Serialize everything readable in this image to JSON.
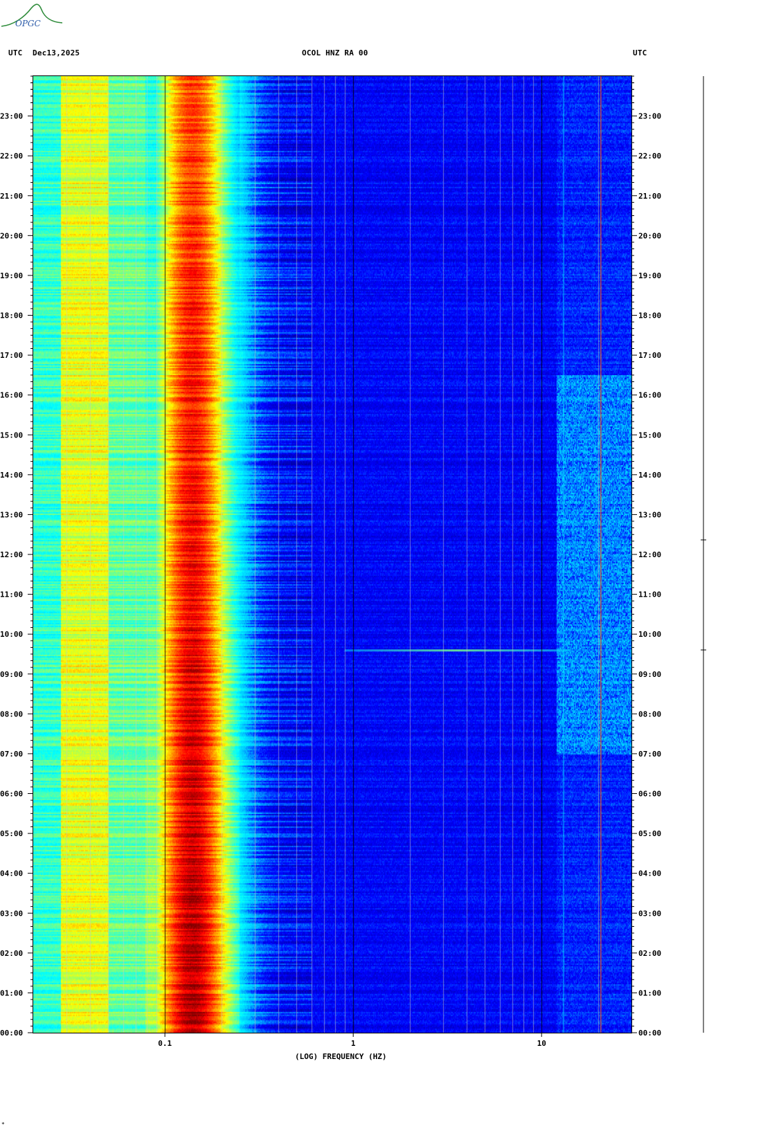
{
  "header": {
    "left_tz": "UTC",
    "date": "Dec13,2025",
    "station": "OCOL HNZ RA 00",
    "right_tz": "UTC"
  },
  "logo": {
    "text": "OPGC"
  },
  "chart_data": {
    "type": "heatmap",
    "title": "OCOL HNZ RA 00",
    "xlabel": "(LOG) FREQUENCY (HZ)",
    "x_scale": "log",
    "xlim": [
      0.02,
      30
    ],
    "x_tick_labels": [
      {
        "value": 0.1,
        "label": "0.1"
      },
      {
        "value": 1,
        "label": "1"
      },
      {
        "value": 10,
        "label": "10"
      }
    ],
    "y_tick_labels": [
      "00:00",
      "01:00",
      "02:00",
      "03:00",
      "04:00",
      "05:00",
      "06:00",
      "07:00",
      "08:00",
      "09:00",
      "10:00",
      "11:00",
      "12:00",
      "13:00",
      "14:00",
      "15:00",
      "16:00",
      "17:00",
      "18:00",
      "19:00",
      "20:00",
      "21:00",
      "22:00",
      "23:00"
    ],
    "ylim_hours": [
      0,
      24
    ],
    "colormap": [
      "#00007f",
      "#0000ff",
      "#00bfff",
      "#00ffff",
      "#7fff7f",
      "#ffff00",
      "#ff7f00",
      "#ff0000",
      "#7f0000"
    ],
    "features": {
      "microseism_peak_hz": 0.14,
      "persistent_line_hz": 20.5,
      "broadband_event_hour": 9.6,
      "high_freq_activity_hours": [
        7,
        16.5
      ]
    }
  },
  "corner_mark": "*"
}
